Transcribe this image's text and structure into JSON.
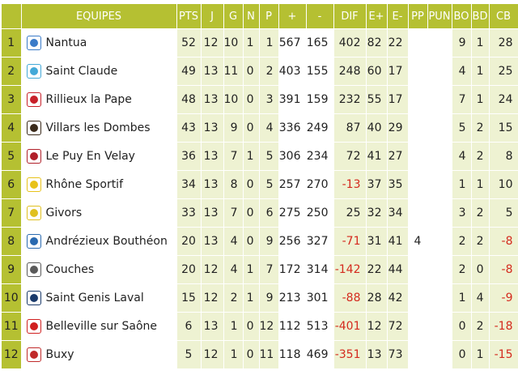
{
  "columns": [
    "",
    "EQUIPES",
    "PTS",
    "J",
    "G",
    "N",
    "P",
    "+",
    "-",
    "DIF",
    "E+",
    "E-",
    "PP",
    "PUN",
    "BO",
    "BD",
    "CB"
  ],
  "rows": [
    {
      "rank": "1",
      "team": "Nantua",
      "pts": "52",
      "j": "12",
      "g": "10",
      "n": "1",
      "p": "1",
      "plus": "567",
      "minus": "165",
      "dif": "402",
      "eplus": "82",
      "eminus": "22",
      "pp": "",
      "pun": "",
      "bo": "9",
      "bd": "1",
      "cb": "28",
      "logo": "nantua-logo",
      "logo_color": "#3a7bc8"
    },
    {
      "rank": "2",
      "team": "Saint Claude",
      "pts": "49",
      "j": "13",
      "g": "11",
      "n": "0",
      "p": "2",
      "plus": "403",
      "minus": "155",
      "dif": "248",
      "eplus": "60",
      "eminus": "17",
      "pp": "",
      "pun": "",
      "bo": "4",
      "bd": "1",
      "cb": "25",
      "logo": "saint-claude-logo",
      "logo_color": "#43a9d8"
    },
    {
      "rank": "3",
      "team": "Rillieux la Pape",
      "pts": "48",
      "j": "13",
      "g": "10",
      "n": "0",
      "p": "3",
      "plus": "391",
      "minus": "159",
      "dif": "232",
      "eplus": "55",
      "eminus": "17",
      "pp": "",
      "pun": "",
      "bo": "7",
      "bd": "1",
      "cb": "24",
      "logo": "rillieux-logo",
      "logo_color": "#c8202a"
    },
    {
      "rank": "4",
      "team": "Villars les Dombes",
      "pts": "43",
      "j": "13",
      "g": "9",
      "n": "0",
      "p": "4",
      "plus": "336",
      "minus": "249",
      "dif": "87",
      "eplus": "40",
      "eminus": "29",
      "pp": "",
      "pun": "",
      "bo": "5",
      "bd": "2",
      "cb": "15",
      "logo": "villars-logo",
      "logo_color": "#3a2a1a"
    },
    {
      "rank": "5",
      "team": "Le Puy En Velay",
      "pts": "36",
      "j": "13",
      "g": "7",
      "n": "1",
      "p": "5",
      "plus": "306",
      "minus": "234",
      "dif": "72",
      "eplus": "41",
      "eminus": "27",
      "pp": "",
      "pun": "",
      "bo": "4",
      "bd": "2",
      "cb": "8",
      "logo": "le-puy-logo",
      "logo_color": "#b0202a"
    },
    {
      "rank": "6",
      "team": "Rhône Sportif",
      "pts": "34",
      "j": "13",
      "g": "8",
      "n": "0",
      "p": "5",
      "plus": "257",
      "minus": "270",
      "dif": "-13",
      "eplus": "37",
      "eminus": "35",
      "pp": "",
      "pun": "",
      "bo": "1",
      "bd": "1",
      "cb": "10",
      "logo": "rhone-logo",
      "logo_color": "#e8c21a"
    },
    {
      "rank": "7",
      "team": "Givors",
      "pts": "33",
      "j": "13",
      "g": "7",
      "n": "0",
      "p": "6",
      "plus": "275",
      "minus": "250",
      "dif": "25",
      "eplus": "32",
      "eminus": "34",
      "pp": "",
      "pun": "",
      "bo": "3",
      "bd": "2",
      "cb": "5",
      "logo": "givors-logo",
      "logo_color": "#e0c020"
    },
    {
      "rank": "8",
      "team": "Andrézieux Bouthéon",
      "pts": "20",
      "j": "13",
      "g": "4",
      "n": "0",
      "p": "9",
      "plus": "256",
      "minus": "327",
      "dif": "-71",
      "eplus": "31",
      "eminus": "41",
      "pp": "4",
      "pun": "",
      "bo": "2",
      "bd": "2",
      "cb": "-8",
      "logo": "andrezieux-logo",
      "logo_color": "#2a6ab0"
    },
    {
      "rank": "9",
      "team": "Couches",
      "pts": "20",
      "j": "12",
      "g": "4",
      "n": "1",
      "p": "7",
      "plus": "172",
      "minus": "314",
      "dif": "-142",
      "eplus": "22",
      "eminus": "44",
      "pp": "",
      "pun": "",
      "bo": "2",
      "bd": "0",
      "cb": "-8",
      "logo": "couches-logo",
      "logo_color": "#5a5a5a"
    },
    {
      "rank": "10",
      "team": "Saint Genis Laval",
      "pts": "15",
      "j": "12",
      "g": "2",
      "n": "1",
      "p": "9",
      "plus": "213",
      "minus": "301",
      "dif": "-88",
      "eplus": "28",
      "eminus": "42",
      "pp": "",
      "pun": "",
      "bo": "1",
      "bd": "4",
      "cb": "-9",
      "logo": "saint-genis-logo",
      "logo_color": "#1a3a6a"
    },
    {
      "rank": "11",
      "team": "Belleville sur Saône",
      "pts": "6",
      "j": "13",
      "g": "1",
      "n": "0",
      "p": "12",
      "plus": "112",
      "minus": "513",
      "dif": "-401",
      "eplus": "12",
      "eminus": "72",
      "pp": "",
      "pun": "",
      "bo": "0",
      "bd": "2",
      "cb": "-18",
      "logo": "belleville-logo",
      "logo_color": "#d02020"
    },
    {
      "rank": "12",
      "team": "Buxy",
      "pts": "5",
      "j": "12",
      "g": "1",
      "n": "0",
      "p": "11",
      "plus": "118",
      "minus": "469",
      "dif": "-351",
      "eplus": "13",
      "eminus": "73",
      "pp": "",
      "pun": "",
      "bo": "0",
      "bd": "1",
      "cb": "-15",
      "logo": "buxy-logo",
      "logo_color": "#c02a2a"
    }
  ],
  "colors": {
    "header_bg": "#b5c032",
    "header_text": "#ffffff",
    "shade": "#eef2d2",
    "negative": "#d42a1e"
  }
}
